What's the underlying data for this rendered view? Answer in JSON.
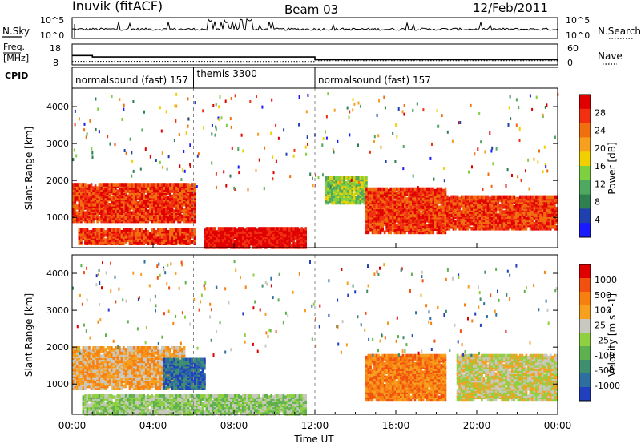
{
  "header": {
    "station": "Inuvik (fitACF)",
    "beam": "Beam 03",
    "date": "12/Feb/2011"
  },
  "nsky_panel": {
    "left_label": "N.Sky",
    "right_label": "N.Search",
    "left_ticks": [
      "10^5",
      "10^0"
    ],
    "right_ticks": [
      "10^5",
      "10^0"
    ]
  },
  "freq_panel": {
    "left_label_line1": "Freq.",
    "left_label_line2": "[MHz]",
    "right_label": "Nave",
    "left_ticks": [
      "18",
      "8"
    ],
    "right_ticks": [
      "60",
      "0"
    ]
  },
  "cpid": {
    "label": "CPID",
    "segments": [
      {
        "name": "normalsound (fast) 157",
        "start_hour": 0,
        "end_hour": 6
      },
      {
        "name": "themis 3300",
        "start_hour": 6,
        "end_hour": 12
      },
      {
        "name": "normalsound (fast) 157",
        "start_hour": 12,
        "end_hour": 24
      }
    ]
  },
  "power_panel": {
    "ylabel": "Slant Range [km]",
    "yticks": [
      "1000",
      "2000",
      "3000",
      "4000"
    ],
    "colorbar_label": "Power [dB]",
    "colorbar_ticks": [
      "28",
      "24",
      "20",
      "16",
      "12",
      "8",
      "4"
    ],
    "colors": [
      "#1a1aff",
      "#2040b0",
      "#2f7f4f",
      "#4fa860",
      "#7fd040",
      "#f0d000",
      "#f7a020",
      "#f07010",
      "#f03010",
      "#e00000"
    ]
  },
  "velocity_panel": {
    "ylabel": "Slant Range [km]",
    "yticks": [
      "1000",
      "2000",
      "3000",
      "4000"
    ],
    "colorbar_label": "Velocity [m s^-1]",
    "colorbar_ticks": [
      "1000",
      "500",
      "100",
      "25",
      "-25",
      "-100",
      "-500",
      "-1000"
    ],
    "colors": [
      "#2040c0",
      "#2f6f9f",
      "#3f8f6f",
      "#5fb04f",
      "#8fd040",
      "#c8c8c0",
      "#f7a020",
      "#f78010",
      "#f05010",
      "#e00000"
    ]
  },
  "xaxis": {
    "label": "Time UT",
    "ticks": [
      "00:00",
      "04:00",
      "08:00",
      "12:00",
      "16:00",
      "20:00",
      "00:00"
    ]
  },
  "chart_data": [
    {
      "type": "line",
      "title": "N.Sky / N.Search",
      "xlabel": "Time UT",
      "x_range_hours": [
        0,
        24
      ],
      "ylim": [
        "10^0",
        "10^5"
      ],
      "log_scale": true,
      "series": [
        {
          "name": "N.Sky",
          "style": "solid"
        },
        {
          "name": "N.Search",
          "style": "dotted"
        }
      ]
    },
    {
      "type": "line",
      "title": "Freq. [MHz] / Nave",
      "x_range_hours": [
        0,
        24
      ],
      "ylim_freq": [
        8,
        18
      ],
      "ylim_nave": [
        0,
        60
      ],
      "series": [
        {
          "name": "Freq.",
          "style": "solid",
          "points": [
            [
              0,
              12.5
            ],
            [
              1,
              12.5
            ],
            [
              1,
              11.8
            ],
            [
              12,
              11.8
            ],
            [
              12,
              10.5
            ],
            [
              24,
              10.5
            ]
          ]
        },
        {
          "name": "Nave",
          "style": "dotted",
          "points": [
            [
              0,
              10
            ],
            [
              12,
              10
            ],
            [
              12,
              12
            ],
            [
              24,
              12
            ]
          ]
        }
      ]
    },
    {
      "type": "heatmap",
      "title": "Power [dB]",
      "xlabel": "Time UT",
      "ylabel": "Slant Range [km]",
      "x_range_hours": [
        0,
        24
      ],
      "ylim": [
        180,
        4500
      ],
      "zlim": [
        0,
        30
      ],
      "bands": [
        {
          "t0": 0.0,
          "t1": 6.0,
          "r0": 900,
          "r1": 1900,
          "level": 8
        },
        {
          "t0": 0.3,
          "t1": 6.0,
          "r0": 300,
          "r1": 700,
          "level": 8
        },
        {
          "t0": 6.5,
          "t1": 11.5,
          "r0": 200,
          "r1": 700,
          "level": 9
        },
        {
          "t0": 12.5,
          "t1": 14.5,
          "r0": 1400,
          "r1": 2100,
          "level": 4
        },
        {
          "t0": 14.5,
          "t1": 18.5,
          "r0": 600,
          "r1": 1800,
          "level": 8
        },
        {
          "t0": 18.5,
          "t1": 24.0,
          "r0": 700,
          "r1": 1600,
          "level": 8
        }
      ]
    },
    {
      "type": "heatmap",
      "title": "Velocity [m s^-1]",
      "xlabel": "Time UT",
      "ylabel": "Slant Range [km]",
      "x_range_hours": [
        0,
        24
      ],
      "ylim": [
        180,
        4500
      ],
      "zlim": [
        -1000,
        1000
      ],
      "bands": [
        {
          "t0": 0.0,
          "t1": 5.5,
          "r0": 900,
          "r1": 2000,
          "level": 6
        },
        {
          "t0": 4.5,
          "t1": 6.5,
          "r0": 900,
          "r1": 1700,
          "level": 1
        },
        {
          "t0": 0.5,
          "t1": 11.5,
          "r0": 200,
          "r1": 700,
          "level": 4
        },
        {
          "t0": 14.5,
          "t1": 18.5,
          "r0": 600,
          "r1": 1800,
          "level": 7
        },
        {
          "t0": 19.0,
          "t1": 24.0,
          "r0": 600,
          "r1": 1800,
          "level": 5
        }
      ]
    }
  ]
}
